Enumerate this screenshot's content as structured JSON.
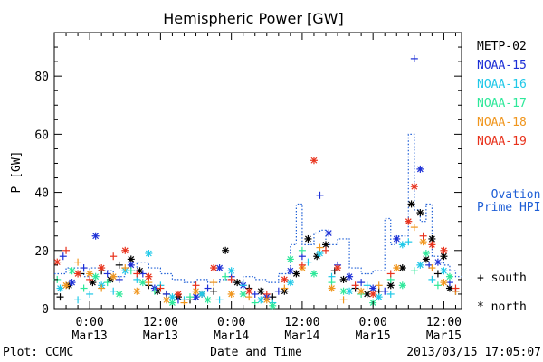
{
  "chart_data": {
    "type": "scatter",
    "title": "Hemispheric Power [GW]",
    "ylabel": "P [GW]",
    "xlabel": "Date and Time",
    "ylim": [
      0,
      95
    ],
    "xlim_hours": [
      -6,
      63
    ],
    "y_ticks": [
      "0",
      "20",
      "40",
      "60",
      "80"
    ],
    "x_ticks": [
      {
        "line1": "0:00",
        "line2": "Mar13",
        "hour": 0
      },
      {
        "line1": "12:00",
        "line2": "Mar13",
        "hour": 12
      },
      {
        "line1": "0:00",
        "line2": "Mar14",
        "hour": 24
      },
      {
        "line1": "12:00",
        "line2": "Mar14",
        "hour": 36
      },
      {
        "line1": "0:00",
        "line2": "Mar15",
        "hour": 48
      },
      {
        "line1": "12:00",
        "line2": "Mar15",
        "hour": 60
      }
    ],
    "legend": [
      {
        "name": "METP-02",
        "color": "#000000"
      },
      {
        "name": "NOAA-15",
        "color": "#1c2fd6"
      },
      {
        "name": "NOAA-16",
        "color": "#1fc8e8"
      },
      {
        "name": "NOAA-17",
        "color": "#2ee89a"
      },
      {
        "name": "NOAA-18",
        "color": "#f0961e"
      },
      {
        "name": "NOAA-19",
        "color": "#e8321c"
      }
    ],
    "ovation": {
      "label_line1": "— Ovation",
      "label_line2": "Prime HPI",
      "color": "#1f5fd6",
      "steps": [
        [
          -6,
          12
        ],
        [
          -4,
          14
        ],
        [
          -1,
          11
        ],
        [
          0,
          14
        ],
        [
          2,
          13
        ],
        [
          4,
          11
        ],
        [
          6,
          13
        ],
        [
          8,
          16
        ],
        [
          10,
          14
        ],
        [
          12,
          12
        ],
        [
          14,
          10
        ],
        [
          16,
          9
        ],
        [
          18,
          10
        ],
        [
          20,
          9
        ],
        [
          22,
          10
        ],
        [
          24,
          9
        ],
        [
          26,
          11
        ],
        [
          28,
          10
        ],
        [
          30,
          9
        ],
        [
          32,
          12
        ],
        [
          34,
          22
        ],
        [
          35,
          36
        ],
        [
          36,
          22
        ],
        [
          38,
          26
        ],
        [
          39,
          27
        ],
        [
          40,
          22
        ],
        [
          42,
          24
        ],
        [
          44,
          14
        ],
        [
          46,
          12
        ],
        [
          48,
          13
        ],
        [
          50,
          31
        ],
        [
          51,
          22
        ],
        [
          52,
          25
        ],
        [
          54,
          60
        ],
        [
          55,
          34
        ],
        [
          56,
          30
        ],
        [
          57,
          36
        ],
        [
          58,
          18
        ],
        [
          59,
          16
        ],
        [
          60,
          15
        ],
        [
          61,
          13
        ],
        [
          62,
          11
        ],
        [
          63,
          11
        ]
      ]
    },
    "series": [
      {
        "name": "METP-02",
        "color": "#000000",
        "points": [
          [
            -5,
            4,
            "+"
          ],
          [
            -3.5,
            8,
            "*"
          ],
          [
            -1.5,
            12,
            "+"
          ],
          [
            0.5,
            9,
            "*"
          ],
          [
            2,
            13,
            "+"
          ],
          [
            3.5,
            10,
            "*"
          ],
          [
            5,
            15,
            "+"
          ],
          [
            7,
            17,
            "*"
          ],
          [
            8.5,
            13,
            "*"
          ],
          [
            10,
            8,
            "+"
          ],
          [
            11.5,
            6,
            "*"
          ],
          [
            13,
            5,
            "+"
          ],
          [
            15,
            4,
            "*"
          ],
          [
            17,
            3,
            "+"
          ],
          [
            19,
            5,
            "*"
          ],
          [
            21,
            6,
            "+"
          ],
          [
            23,
            20,
            "*"
          ],
          [
            25,
            9,
            "*"
          ],
          [
            27,
            7,
            "+"
          ],
          [
            29,
            6,
            "*"
          ],
          [
            31,
            4,
            "+"
          ],
          [
            33,
            6,
            "*"
          ],
          [
            35,
            12,
            "*"
          ],
          [
            37,
            24,
            "*"
          ],
          [
            38.5,
            18,
            "*"
          ],
          [
            40,
            22,
            "*"
          ],
          [
            41.5,
            13,
            "+"
          ],
          [
            43,
            10,
            "*"
          ],
          [
            45,
            7,
            "+"
          ],
          [
            47,
            5,
            "*"
          ],
          [
            49,
            6,
            "+"
          ],
          [
            51,
            8,
            "*"
          ],
          [
            53,
            14,
            "*"
          ],
          [
            54.5,
            36,
            "*"
          ],
          [
            56,
            33,
            "*"
          ],
          [
            57,
            17,
            "*"
          ],
          [
            58,
            24,
            "*"
          ],
          [
            59,
            12,
            "+"
          ],
          [
            60,
            18,
            "*"
          ],
          [
            61,
            7,
            "*"
          ],
          [
            62,
            6,
            "+"
          ]
        ]
      },
      {
        "name": "NOAA-15",
        "color": "#1c2fd6",
        "points": [
          [
            -4.5,
            18,
            "+"
          ],
          [
            -3,
            9,
            "*"
          ],
          [
            -1,
            14,
            "+"
          ],
          [
            1,
            25,
            "*"
          ],
          [
            3,
            12,
            "+"
          ],
          [
            5,
            10,
            "+"
          ],
          [
            7,
            15,
            "*"
          ],
          [
            9,
            12,
            "+"
          ],
          [
            11,
            7,
            "*"
          ],
          [
            13,
            5,
            "+"
          ],
          [
            15,
            3,
            "+"
          ],
          [
            18,
            4,
            "*"
          ],
          [
            20,
            7,
            "+"
          ],
          [
            22,
            14,
            "*"
          ],
          [
            24,
            11,
            "+"
          ],
          [
            26,
            8,
            "*"
          ],
          [
            28,
            5,
            "+"
          ],
          [
            30,
            4,
            "*"
          ],
          [
            32,
            6,
            "+"
          ],
          [
            34,
            13,
            "*"
          ],
          [
            36,
            18,
            "+"
          ],
          [
            39,
            39,
            "+"
          ],
          [
            40.5,
            26,
            "*"
          ],
          [
            42,
            15,
            "+"
          ],
          [
            44,
            11,
            "*"
          ],
          [
            46,
            9,
            "+"
          ],
          [
            48,
            7,
            "*"
          ],
          [
            50,
            6,
            "+"
          ],
          [
            52,
            24,
            "*"
          ],
          [
            55,
            86,
            "+"
          ],
          [
            56,
            48,
            "*"
          ],
          [
            57.5,
            15,
            "+"
          ],
          [
            59,
            16,
            "*"
          ],
          [
            61,
            9,
            "+"
          ]
        ]
      },
      {
        "name": "NOAA-16",
        "color": "#1fc8e8",
        "points": [
          [
            -5,
            7,
            "*"
          ],
          [
            -2,
            3,
            "+"
          ],
          [
            0,
            5,
            "+"
          ],
          [
            2,
            8,
            "*"
          ],
          [
            4,
            6,
            "+"
          ],
          [
            6,
            13,
            "*"
          ],
          [
            8,
            10,
            "+"
          ],
          [
            10,
            19,
            "*"
          ],
          [
            12,
            8,
            "+"
          ],
          [
            14,
            4,
            "*"
          ],
          [
            16,
            3,
            "+"
          ],
          [
            19,
            5,
            "*"
          ],
          [
            22,
            3,
            "+"
          ],
          [
            24,
            13,
            "*"
          ],
          [
            26,
            8,
            "+"
          ],
          [
            29,
            3,
            "*"
          ],
          [
            31,
            2,
            "+"
          ],
          [
            34,
            9,
            "*"
          ],
          [
            37,
            16,
            "+"
          ],
          [
            39,
            19,
            "*"
          ],
          [
            41,
            11,
            "+"
          ],
          [
            44,
            6,
            "*"
          ],
          [
            47,
            8,
            "+"
          ],
          [
            49,
            4,
            "*"
          ],
          [
            51,
            5,
            "+"
          ],
          [
            53,
            22,
            "*"
          ],
          [
            54,
            23,
            "+"
          ],
          [
            56,
            15,
            "*"
          ],
          [
            58,
            10,
            "+"
          ],
          [
            60,
            13,
            "*"
          ]
        ]
      },
      {
        "name": "NOAA-17",
        "color": "#2ee89a",
        "points": [
          [
            -5.5,
            10,
            "+"
          ],
          [
            -3,
            13,
            "*"
          ],
          [
            -1,
            7,
            "+"
          ],
          [
            1,
            11,
            "*"
          ],
          [
            3,
            9,
            "+"
          ],
          [
            5,
            5,
            "*"
          ],
          [
            7,
            13,
            "+"
          ],
          [
            9,
            9,
            "*"
          ],
          [
            11,
            6,
            "+"
          ],
          [
            14,
            2,
            "*"
          ],
          [
            17,
            4,
            "+"
          ],
          [
            20,
            3,
            "*"
          ],
          [
            23,
            11,
            "+"
          ],
          [
            26,
            5,
            "*"
          ],
          [
            28,
            2,
            "+"
          ],
          [
            31,
            1,
            "*"
          ],
          [
            34,
            17,
            "*"
          ],
          [
            36,
            20,
            "+"
          ],
          [
            38,
            12,
            "*"
          ],
          [
            41,
            9,
            "+"
          ],
          [
            43,
            6,
            "*"
          ],
          [
            46,
            5,
            "+"
          ],
          [
            48,
            2,
            "*"
          ],
          [
            51,
            10,
            "+"
          ],
          [
            53,
            8,
            "*"
          ],
          [
            55,
            13,
            "+"
          ],
          [
            57,
            19,
            "*"
          ],
          [
            59,
            8,
            "+"
          ],
          [
            61,
            11,
            "*"
          ]
        ]
      },
      {
        "name": "NOAA-18",
        "color": "#f0961e",
        "points": [
          [
            -4,
            8,
            "*"
          ],
          [
            -2,
            16,
            "+"
          ],
          [
            0,
            12,
            "*"
          ],
          [
            2,
            7,
            "+"
          ],
          [
            4,
            11,
            "*"
          ],
          [
            6,
            14,
            "+"
          ],
          [
            8,
            6,
            "*"
          ],
          [
            10,
            9,
            "+"
          ],
          [
            13,
            3,
            "*"
          ],
          [
            16,
            2,
            "+"
          ],
          [
            18,
            6,
            "*"
          ],
          [
            21,
            9,
            "+"
          ],
          [
            24,
            5,
            "*"
          ],
          [
            27,
            4,
            "+"
          ],
          [
            30,
            3,
            "*"
          ],
          [
            33,
            7,
            "+"
          ],
          [
            36,
            14,
            "*"
          ],
          [
            39,
            21,
            "+"
          ],
          [
            41,
            7,
            "*"
          ],
          [
            43,
            3,
            "+"
          ],
          [
            46,
            6,
            "*"
          ],
          [
            49,
            8,
            "+"
          ],
          [
            52,
            14,
            "*"
          ],
          [
            55,
            28,
            "+"
          ],
          [
            56.5,
            23,
            "*"
          ],
          [
            58,
            14,
            "+"
          ],
          [
            60,
            9,
            "*"
          ],
          [
            62,
            6,
            "+"
          ]
        ]
      },
      {
        "name": "NOAA-19",
        "color": "#e8321c",
        "points": [
          [
            -5.5,
            16,
            "*"
          ],
          [
            -4,
            20,
            "+"
          ],
          [
            -2,
            12,
            "*"
          ],
          [
            0,
            10,
            "+"
          ],
          [
            2,
            14,
            "*"
          ],
          [
            4,
            18,
            "+"
          ],
          [
            6,
            20,
            "*"
          ],
          [
            8,
            12,
            "+"
          ],
          [
            10,
            11,
            "*"
          ],
          [
            12,
            7,
            "+"
          ],
          [
            15,
            5,
            "*"
          ],
          [
            18,
            8,
            "+"
          ],
          [
            21,
            14,
            "*"
          ],
          [
            24,
            10,
            "+"
          ],
          [
            27,
            6,
            "*"
          ],
          [
            30,
            5,
            "+"
          ],
          [
            33,
            10,
            "*"
          ],
          [
            36,
            15,
            "+"
          ],
          [
            38,
            51,
            "*"
          ],
          [
            40,
            20,
            "+"
          ],
          [
            42,
            14,
            "*"
          ],
          [
            45,
            8,
            "+"
          ],
          [
            48,
            5,
            "*"
          ],
          [
            51,
            12,
            "+"
          ],
          [
            54,
            30,
            "*"
          ],
          [
            55,
            42,
            "*"
          ],
          [
            56.5,
            25,
            "+"
          ],
          [
            58,
            22,
            "*"
          ],
          [
            60,
            20,
            "*"
          ],
          [
            62,
            7,
            "+"
          ]
        ]
      }
    ],
    "marker_legend": {
      "south": "+ south",
      "north": "* north"
    },
    "footer": {
      "left": "Plot: CCMC",
      "right": "2013/03/15 17:05:07"
    }
  }
}
